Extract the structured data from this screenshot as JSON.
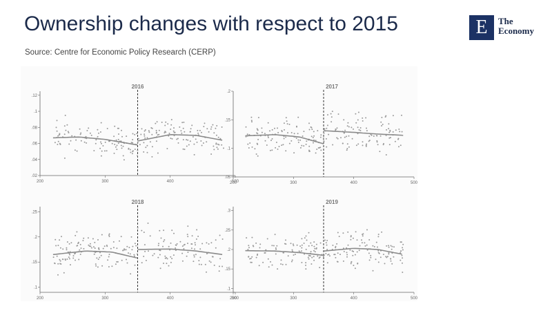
{
  "header": {
    "title": "Ownership changes with respect to 2015",
    "source": "Source: Centre for Economic Policy Research (CERP)"
  },
  "logo": {
    "mark": "E",
    "line1": "The",
    "line2": "Economy",
    "color": "#1c3264"
  },
  "colors": {
    "points": "#9a9a9a",
    "fit": "#8a8a8a",
    "axis": "#666666"
  },
  "chart_data": [
    {
      "type": "scatter",
      "title": "2016",
      "xlim": [
        200,
        500
      ],
      "xticks": [
        200,
        300,
        400,
        500
      ],
      "xtick_labels": [
        "200",
        "300",
        "400",
        "500"
      ],
      "ylim": [
        0.02,
        0.125
      ],
      "yticks": [
        0.02,
        0.04,
        0.06,
        0.08,
        0.1,
        0.12
      ],
      "ytick_labels": [
        ".02",
        ".04",
        ".06",
        ".08",
        ".1",
        ".12"
      ],
      "cutoff": 350,
      "seed": 11,
      "noise": 0.018,
      "fit_left": {
        "x": [
          220,
          260,
          300,
          350
        ],
        "y": [
          0.067,
          0.068,
          0.065,
          0.058
        ]
      },
      "fit_right": {
        "x": [
          350,
          400,
          440,
          480
        ],
        "y": [
          0.063,
          0.071,
          0.07,
          0.064
        ]
      }
    },
    {
      "type": "scatter",
      "title": "2017",
      "xlim": [
        200,
        500
      ],
      "xticks": [
        200,
        300,
        400,
        500
      ],
      "xtick_labels": [
        "200",
        "300",
        "400",
        "500"
      ],
      "ylim": [
        0.05,
        0.2
      ],
      "yticks": [
        0.05,
        0.1,
        0.15,
        0.2
      ],
      "ytick_labels": [
        ".05",
        ".1",
        ".15",
        ".2"
      ],
      "cutoff": 350,
      "seed": 23,
      "noise": 0.03,
      "fit_left": {
        "x": [
          220,
          270,
          310,
          350
        ],
        "y": [
          0.122,
          0.124,
          0.12,
          0.108
        ]
      },
      "fit_right": {
        "x": [
          350,
          400,
          440,
          480
        ],
        "y": [
          0.131,
          0.128,
          0.125,
          0.123
        ]
      }
    },
    {
      "type": "scatter",
      "title": "2018",
      "xlim": [
        200,
        500
      ],
      "xticks": [
        200,
        300,
        400,
        500
      ],
      "xtick_labels": [
        "200",
        "300",
        "400",
        "500"
      ],
      "ylim": [
        0.09,
        0.26
      ],
      "yticks": [
        0.1,
        0.15,
        0.2,
        0.25
      ],
      "ytick_labels": [
        ".1",
        ".15",
        ".2",
        ".25"
      ],
      "cutoff": 350,
      "seed": 37,
      "noise": 0.035,
      "fit_left": {
        "x": [
          220,
          270,
          310,
          350
        ],
        "y": [
          0.165,
          0.172,
          0.17,
          0.158
        ]
      },
      "fit_right": {
        "x": [
          350,
          400,
          440,
          480
        ],
        "y": [
          0.175,
          0.176,
          0.172,
          0.165
        ]
      }
    },
    {
      "type": "scatter",
      "title": "2019",
      "xlim": [
        200,
        500
      ],
      "xticks": [
        200,
        300,
        400,
        500
      ],
      "xtick_labels": [
        "200",
        "300",
        "400",
        "500"
      ],
      "ylim": [
        0.09,
        0.31
      ],
      "yticks": [
        0.1,
        0.15,
        0.2,
        0.25,
        0.3
      ],
      "ytick_labels": [
        ".1",
        ".15",
        ".2",
        ".25",
        ".3"
      ],
      "cutoff": 350,
      "seed": 51,
      "noise": 0.04,
      "fit_left": {
        "x": [
          220,
          270,
          310,
          350
        ],
        "y": [
          0.197,
          0.196,
          0.192,
          0.185
        ]
      },
      "fit_right": {
        "x": [
          350,
          400,
          440,
          480
        ],
        "y": [
          0.196,
          0.203,
          0.2,
          0.188
        ]
      }
    }
  ]
}
